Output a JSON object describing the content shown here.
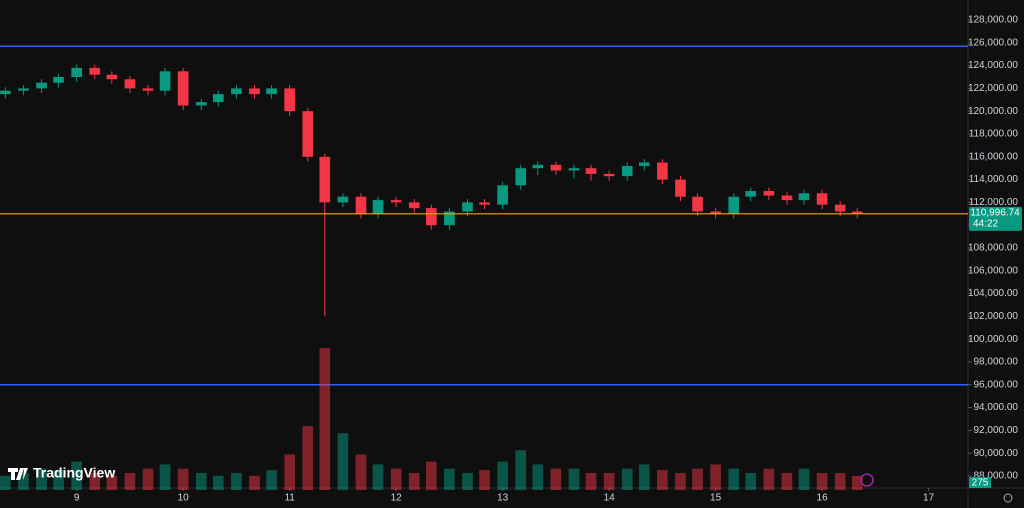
{
  "chart_data": {
    "type": "candlestick",
    "brand": "TradingView",
    "x": [
      8.33,
      8.5,
      8.67,
      8.83,
      9,
      9.17,
      9.33,
      9.5,
      9.67,
      9.83,
      10,
      10.17,
      10.33,
      10.5,
      10.67,
      10.83,
      11,
      11.17,
      11.33,
      11.5,
      11.67,
      11.83,
      12,
      12.17,
      12.33,
      12.5,
      12.67,
      12.83,
      13,
      13.17,
      13.33,
      13.5,
      13.67,
      13.83,
      14,
      14.17,
      14.33,
      14.5,
      14.67,
      14.83,
      15,
      15.17,
      15.33,
      15.5,
      15.67,
      15.83,
      16,
      16.17,
      16.33
    ],
    "open": [
      121500,
      121800,
      122000,
      122500,
      123000,
      123800,
      123200,
      122800,
      122000,
      121800,
      123500,
      120500,
      120800,
      121500,
      122000,
      121500,
      122000,
      120000,
      116000,
      112000,
      112500,
      111000,
      112200,
      112000,
      111500,
      110000,
      111200,
      112000,
      111800,
      113500,
      115000,
      115300,
      114800,
      115000,
      114500,
      114300,
      115200,
      115500,
      114000,
      112500,
      111200,
      111000,
      112500,
      113000,
      112600,
      112200,
      112800,
      111800,
      111200
    ],
    "high": [
      122100,
      122300,
      122800,
      123300,
      124100,
      124100,
      123500,
      123100,
      122300,
      123800,
      123800,
      121100,
      121800,
      122300,
      122300,
      122300,
      122300,
      120300,
      116300,
      112800,
      112800,
      112500,
      112500,
      112300,
      111800,
      111500,
      112300,
      112300,
      113800,
      115300,
      115600,
      115600,
      115300,
      115300,
      114800,
      115500,
      115800,
      115800,
      114300,
      112800,
      111500,
      112800,
      113300,
      113300,
      112900,
      113100,
      113100,
      112100,
      111500
    ],
    "low": [
      121100,
      121400,
      121600,
      122100,
      122600,
      122800,
      122400,
      121600,
      121400,
      121400,
      120100,
      120100,
      120400,
      121100,
      121100,
      121100,
      119600,
      115600,
      102000,
      111600,
      110600,
      110600,
      111600,
      111100,
      109600,
      109600,
      110800,
      111400,
      111400,
      113100,
      114400,
      114400,
      114100,
      113900,
      113900,
      113900,
      114800,
      113600,
      112100,
      110800,
      110600,
      110600,
      112100,
      112200,
      111800,
      111800,
      111400,
      110800,
      110600
    ],
    "close": [
      121800,
      122000,
      122500,
      123000,
      123800,
      123200,
      122800,
      122000,
      121800,
      123500,
      120500,
      120800,
      121500,
      122000,
      121500,
      122000,
      120000,
      116000,
      112000,
      112500,
      111000,
      112200,
      112000,
      111500,
      110000,
      111200,
      112000,
      111800,
      113500,
      115000,
      115300,
      114800,
      115000,
      114500,
      114300,
      115200,
      115500,
      114000,
      112500,
      111200,
      111000,
      112500,
      113000,
      112600,
      112200,
      112800,
      111800,
      111200,
      110996.74
    ],
    "volume": [
      10,
      12,
      15,
      14,
      20,
      12,
      10,
      12,
      15,
      18,
      15,
      12,
      10,
      12,
      10,
      14,
      25,
      45,
      100,
      40,
      25,
      18,
      15,
      12,
      20,
      15,
      12,
      14,
      20,
      28,
      18,
      15,
      15,
      12,
      12,
      15,
      18,
      14,
      12,
      15,
      18,
      15,
      12,
      15,
      12,
      15,
      12,
      12,
      10
    ],
    "volume_lim": [
      0,
      100
    ],
    "up_color": "#089981",
    "down_color": "#f23645",
    "xlim": [
      8.28,
      17.37
    ],
    "xticks": [
      9,
      10,
      11,
      12,
      13,
      14,
      15,
      16,
      17
    ],
    "ylim": [
      88000,
      128000
    ],
    "yticks": [
      {
        "value": 88000,
        "label": "88,000.00"
      },
      {
        "value": 90000,
        "label": "90,000.00"
      },
      {
        "value": 92000,
        "label": "92,000.00"
      },
      {
        "value": 94000,
        "label": "94,000.00"
      },
      {
        "value": 96000,
        "label": "96,000.00"
      },
      {
        "value": 98000,
        "label": "98,000.00"
      },
      {
        "value": 100000,
        "label": "100,000.00"
      },
      {
        "value": 102000,
        "label": "102,000.00"
      },
      {
        "value": 104000,
        "label": "104,000.00"
      },
      {
        "value": 106000,
        "label": "106,000.00"
      },
      {
        "value": 108000,
        "label": "108,000.00"
      },
      {
        "value": 110000,
        "label": "110,000.00"
      },
      {
        "value": 112000,
        "label": "112,000.00"
      },
      {
        "value": 114000,
        "label": "114,000.00"
      },
      {
        "value": 116000,
        "label": "116,000.00"
      },
      {
        "value": 118000,
        "label": "118,000.00"
      },
      {
        "value": 120000,
        "label": "120,000.00"
      },
      {
        "value": 122000,
        "label": "122,000.00"
      },
      {
        "value": 124000,
        "label": "124,000.00"
      },
      {
        "value": 126000,
        "label": "126,000.00"
      },
      {
        "value": 128000,
        "label": "128,000.00"
      }
    ],
    "price_lines": [
      {
        "value": 125700,
        "color": "#2962ff"
      },
      {
        "value": 96000,
        "color": "#2962ff"
      }
    ],
    "last_price": {
      "value": 110996.74,
      "label": "110,996.74",
      "countdown": "44:22",
      "color": "#f7a600"
    },
    "badge": "275"
  }
}
